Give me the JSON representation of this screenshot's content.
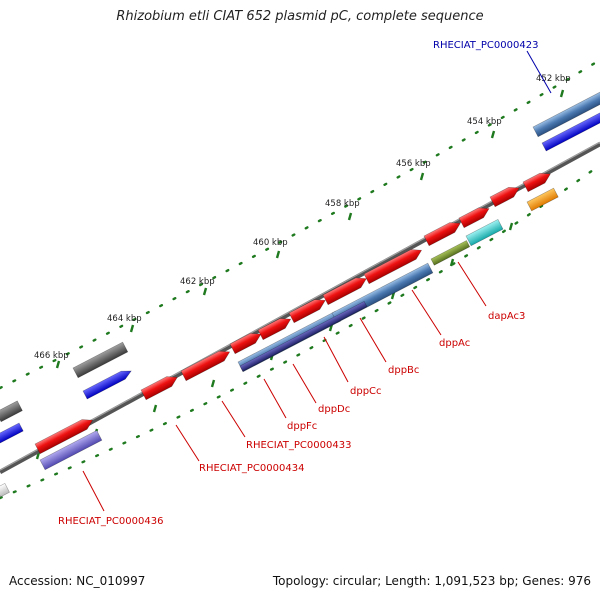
{
  "title": "Rhizobium etli CIAT 652 plasmid pC, complete sequence",
  "accession": "Accession: NC_010997",
  "summary": "Topology: circular; Length: 1,091,523 bp; Genes: 976",
  "ruler": {
    "tick_labels": [
      "452 kbp",
      "454 kbp",
      "456 kbp",
      "458 kbp",
      "460 kbp",
      "462 kbp",
      "464 kbp",
      "466 kbp"
    ]
  },
  "gene_labels": [
    "RHECIAT_PC0000423",
    "dapAc3",
    "dppAc",
    "dppBc",
    "dppCc",
    "dppDc",
    "dppFc",
    "RHECIAT_PC0000433",
    "RHECIAT_PC0000434",
    "RHECIAT_PC0000436"
  ],
  "colors": {
    "forward_gene": "#ee1111",
    "cds_blue": "#4a78b0",
    "cds_navy": "#2b2a80",
    "cds_purple": "#6c63c9",
    "cds_bright_blue": "#1515e0",
    "cds_gray": "#555555",
    "cds_cyan": "#22c8c8",
    "cds_olive": "#6f8a2a",
    "cds_orange": "#ff9a00",
    "backbone": "#777777",
    "tick_green": "#1f7a1f",
    "label_red": "#cc0000",
    "label_blue": "#0000aa"
  }
}
